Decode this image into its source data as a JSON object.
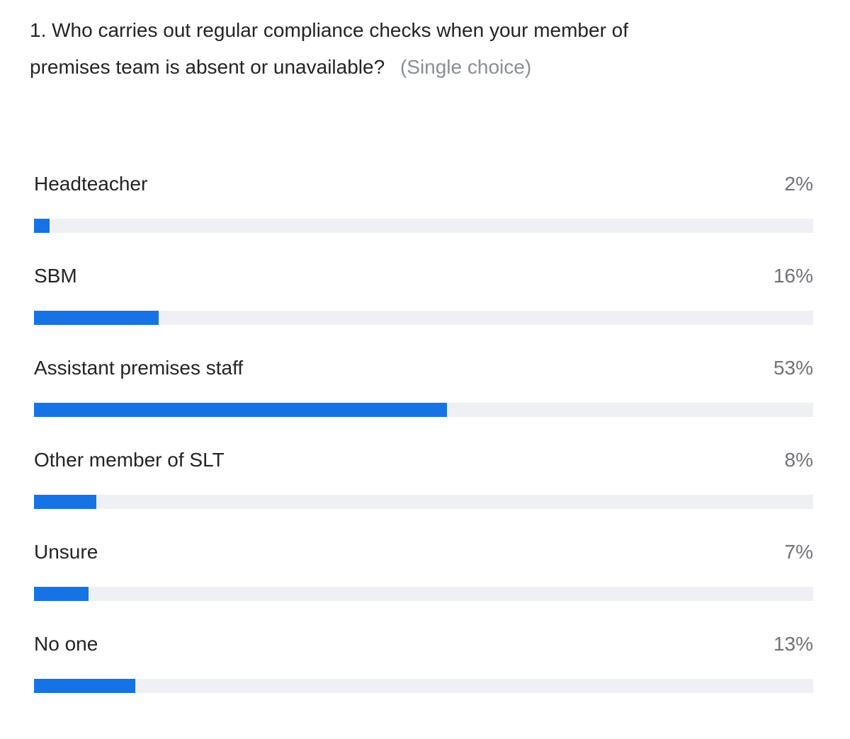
{
  "question": {
    "text": "1. Who carries out regular compliance checks when your member of premises team is absent or unavailable?",
    "type_label": "(Single choice)"
  },
  "chart_data": {
    "type": "bar",
    "orientation": "horizontal",
    "title": "1. Who carries out regular compliance checks when your member of premises team is absent or unavailable?",
    "subtitle": "(Single choice)",
    "categories": [
      "Headteacher",
      "SBM",
      "Assistant premises staff",
      "Other member of SLT",
      "Unsure",
      "No one"
    ],
    "values": [
      2,
      16,
      53,
      8,
      7,
      13
    ],
    "value_labels": [
      "2%",
      "16%",
      "53%",
      "8%",
      "7%",
      "13%"
    ],
    "xlim": [
      0,
      100
    ],
    "grid": false,
    "legend_position": "none"
  },
  "colors": {
    "background": "#ffffff",
    "question_text": "#252423",
    "type_label_text": "#8a8e95",
    "option_label_text": "#252423",
    "percent_text": "#6f7277",
    "bar_fill": "#1673e6",
    "bar_track": "#eff0f3"
  }
}
